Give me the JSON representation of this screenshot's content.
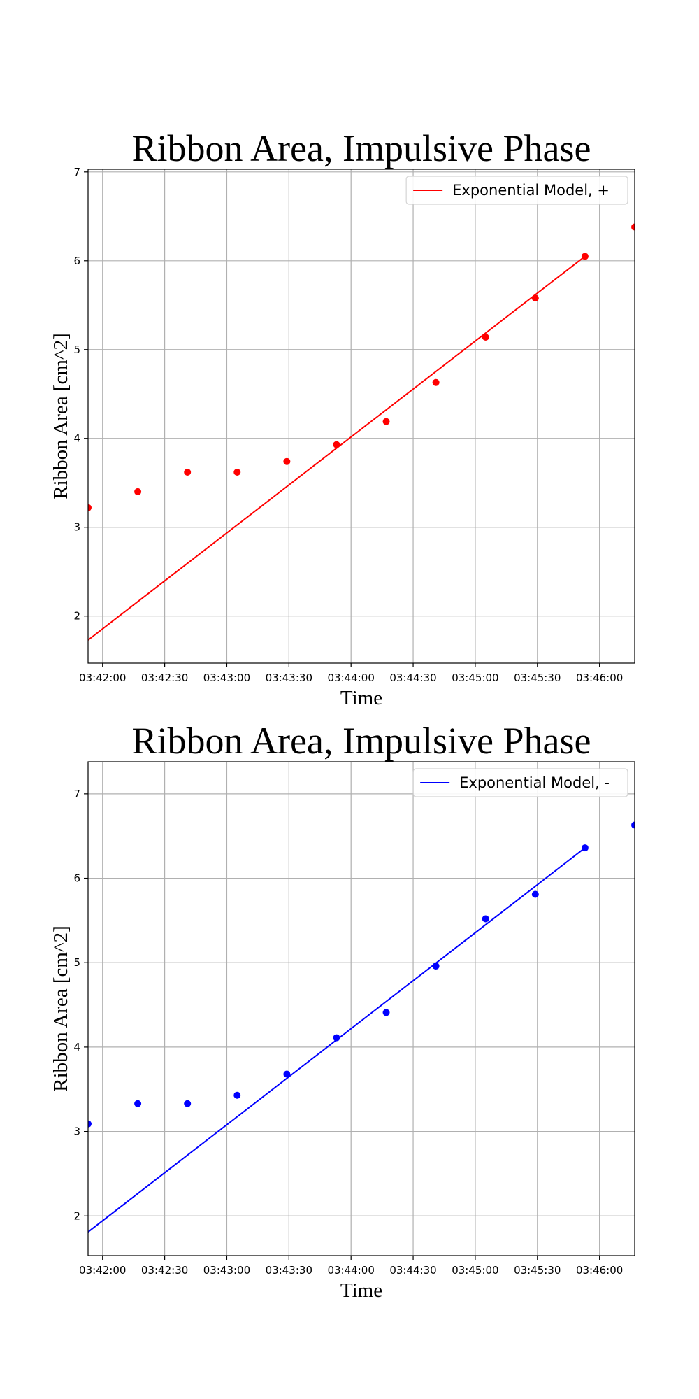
{
  "chart_data": [
    {
      "type": "scatter",
      "title": "Ribbon Area, Impulsive Phase",
      "xlabel": "Time",
      "ylabel": "Ribbon Area [cm^2]",
      "xlim": [
        "03:41:53",
        "03:46:17"
      ],
      "ylim": [
        1.47,
        7.03
      ],
      "grid": true,
      "legend_position": "top-right",
      "x_ticks": [
        "03:42:00",
        "03:42:30",
        "03:43:00",
        "03:43:30",
        "03:44:00",
        "03:44:30",
        "03:45:00",
        "03:45:30",
        "03:46:00"
      ],
      "y_ticks": [
        2,
        3,
        4,
        5,
        6,
        7
      ],
      "series": [
        {
          "name": "Exponential Model, +",
          "kind": "line",
          "color": "#ff0000",
          "x": [
            "03:41:53",
            "03:45:53"
          ],
          "y": [
            1.73,
            6.05
          ]
        },
        {
          "kind": "points",
          "color": "#ff0000",
          "x": [
            "03:41:53",
            "03:42:17",
            "03:42:41",
            "03:43:05",
            "03:43:29",
            "03:43:53",
            "03:44:17",
            "03:44:41",
            "03:45:05",
            "03:45:29",
            "03:45:53",
            "03:46:17"
          ],
          "y": [
            3.22,
            3.4,
            3.62,
            3.62,
            3.74,
            3.93,
            4.19,
            4.63,
            5.14,
            5.58,
            6.05,
            6.38
          ]
        }
      ]
    },
    {
      "type": "scatter",
      "title": "Ribbon Area, Impulsive Phase",
      "xlabel": "Time",
      "ylabel": "Ribbon Area [cm^2]",
      "xlim": [
        "03:41:53",
        "03:46:17"
      ],
      "ylim": [
        1.53,
        7.38
      ],
      "grid": true,
      "legend_position": "top-right",
      "x_ticks": [
        "03:42:00",
        "03:42:30",
        "03:43:00",
        "03:43:30",
        "03:44:00",
        "03:44:30",
        "03:45:00",
        "03:45:30",
        "03:46:00"
      ],
      "y_ticks": [
        2,
        3,
        4,
        5,
        6,
        7
      ],
      "series": [
        {
          "name": "Exponential Model, -",
          "kind": "line",
          "color": "#0000ff",
          "x": [
            "03:41:53",
            "03:45:53"
          ],
          "y": [
            1.81,
            6.36
          ]
        },
        {
          "kind": "points",
          "color": "#0000ff",
          "x": [
            "03:41:53",
            "03:42:17",
            "03:42:41",
            "03:43:05",
            "03:43:29",
            "03:43:53",
            "03:44:17",
            "03:44:41",
            "03:45:05",
            "03:45:29",
            "03:45:53",
            "03:46:17"
          ],
          "y": [
            3.09,
            3.33,
            3.33,
            3.43,
            3.68,
            4.11,
            4.41,
            4.96,
            5.52,
            5.81,
            6.36,
            6.63
          ]
        }
      ]
    }
  ]
}
